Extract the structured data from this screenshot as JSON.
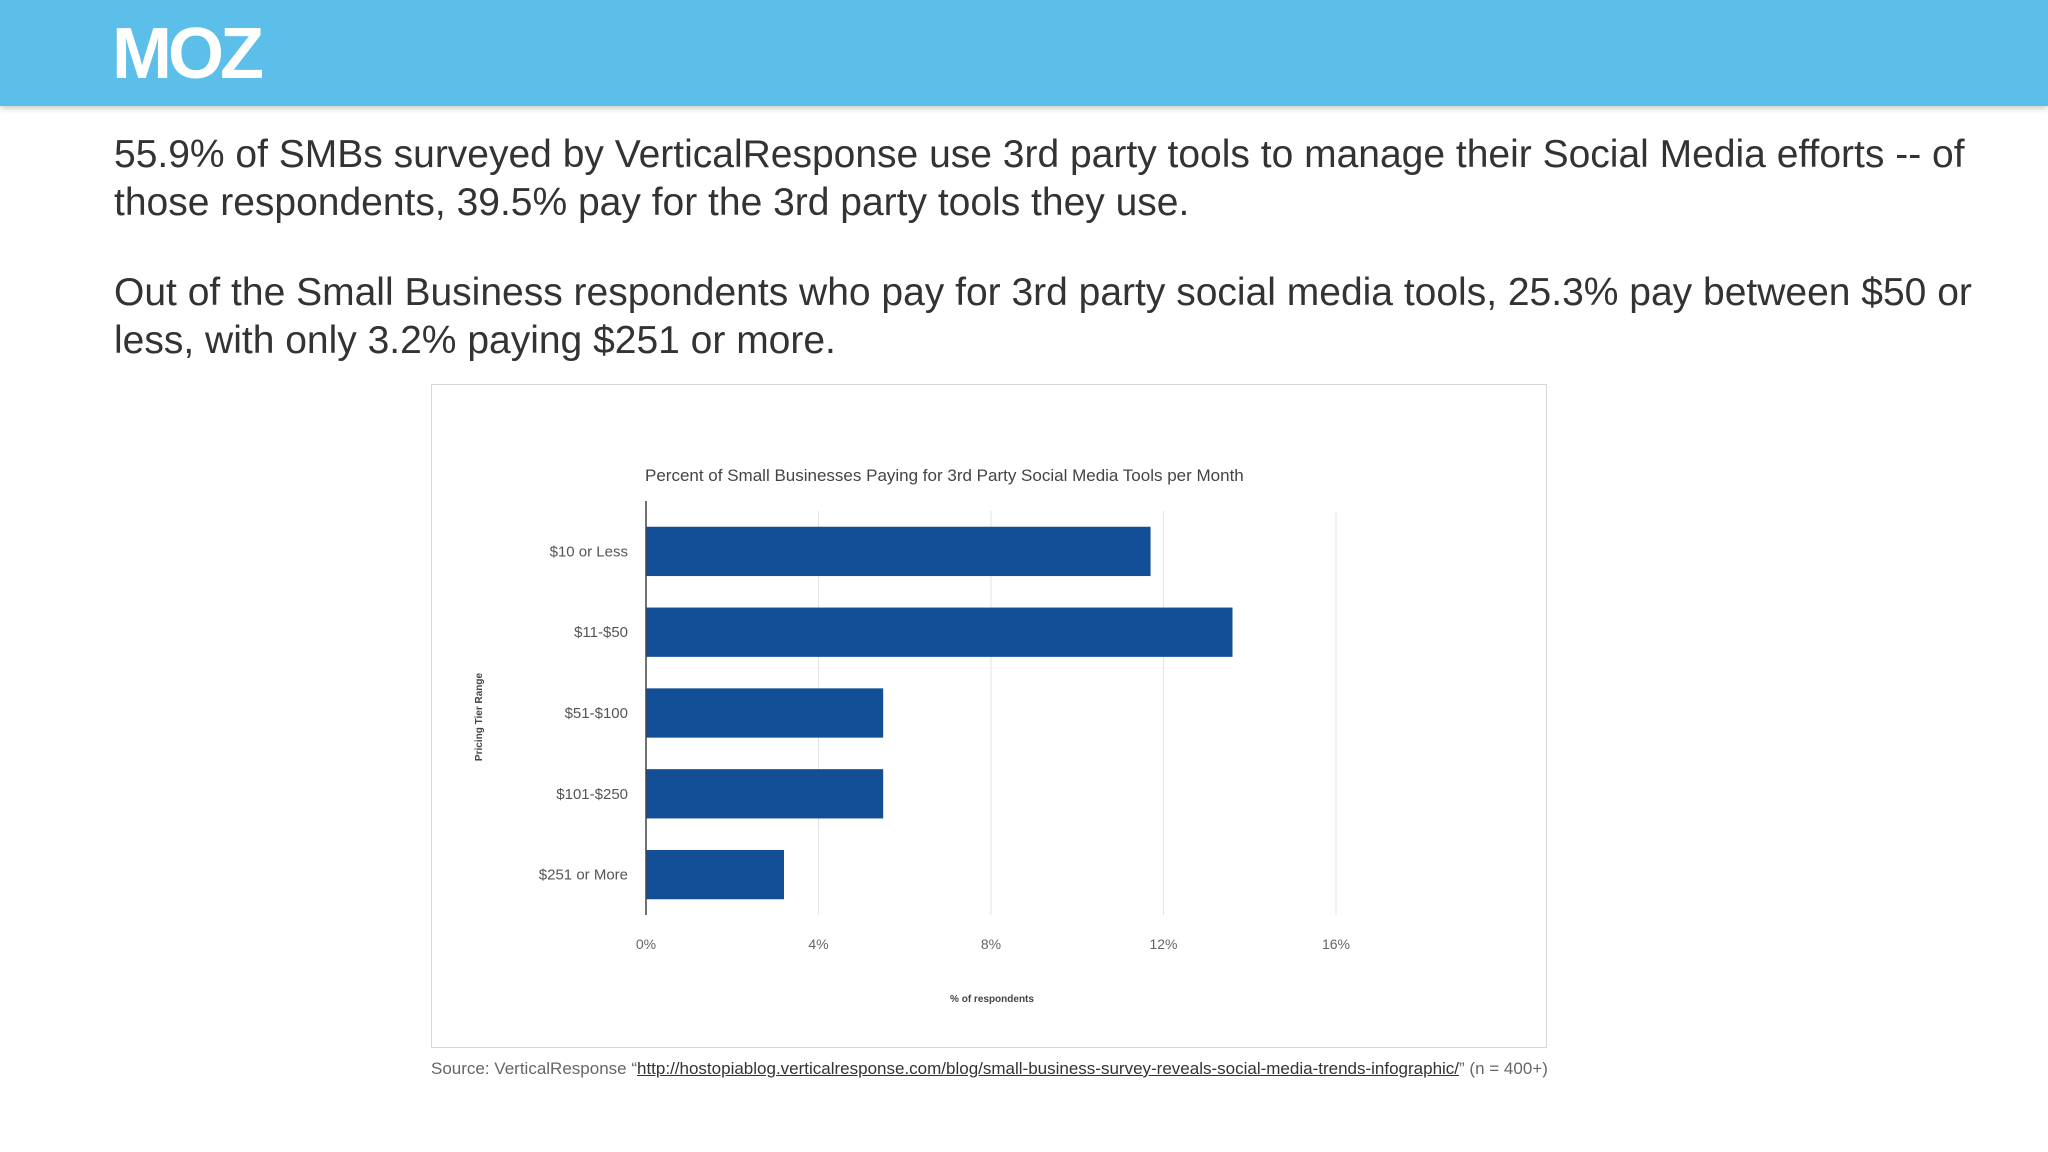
{
  "header": {
    "logo_text": "MOZ",
    "background": "#5bbfea"
  },
  "paragraphs": {
    "p1": "55.9% of SMBs surveyed by VerticalResponse use 3rd party tools to manage their Social Media efforts -- of those respondents, 39.5% pay for the 3rd party tools they use.",
    "p2": "Out of the Small Business respondents who pay for 3rd party social media tools, 25.3% pay between $50 or less, with only 3.2% paying $251 or more."
  },
  "source": {
    "prefix": "Source: VerticalResponse “",
    "link": "http://hostopiablog.verticalresponse.com/blog/small-business-survey-reveals-social-media-trends-infographic/",
    "suffix": "” (n = 400+)"
  },
  "chart_data": {
    "type": "bar",
    "orientation": "horizontal",
    "title": "Percent of Small Businesses Paying for 3rd Party Social Media Tools per Month",
    "xlabel": "% of respondents",
    "ylabel": "Pricing Tier Range",
    "categories": [
      "$10 or Less",
      "$11-$50",
      "$51-$100",
      "$101-$250",
      "$251 or More"
    ],
    "values": [
      11.7,
      13.6,
      5.5,
      5.5,
      3.2
    ],
    "xlim": [
      0,
      16
    ],
    "xticks": [
      0,
      4,
      8,
      12,
      16
    ],
    "xtick_labels": [
      "0%",
      "4%",
      "8%",
      "12%",
      "16%"
    ],
    "bar_color": "#134f96",
    "grid": true,
    "legend": "none"
  }
}
